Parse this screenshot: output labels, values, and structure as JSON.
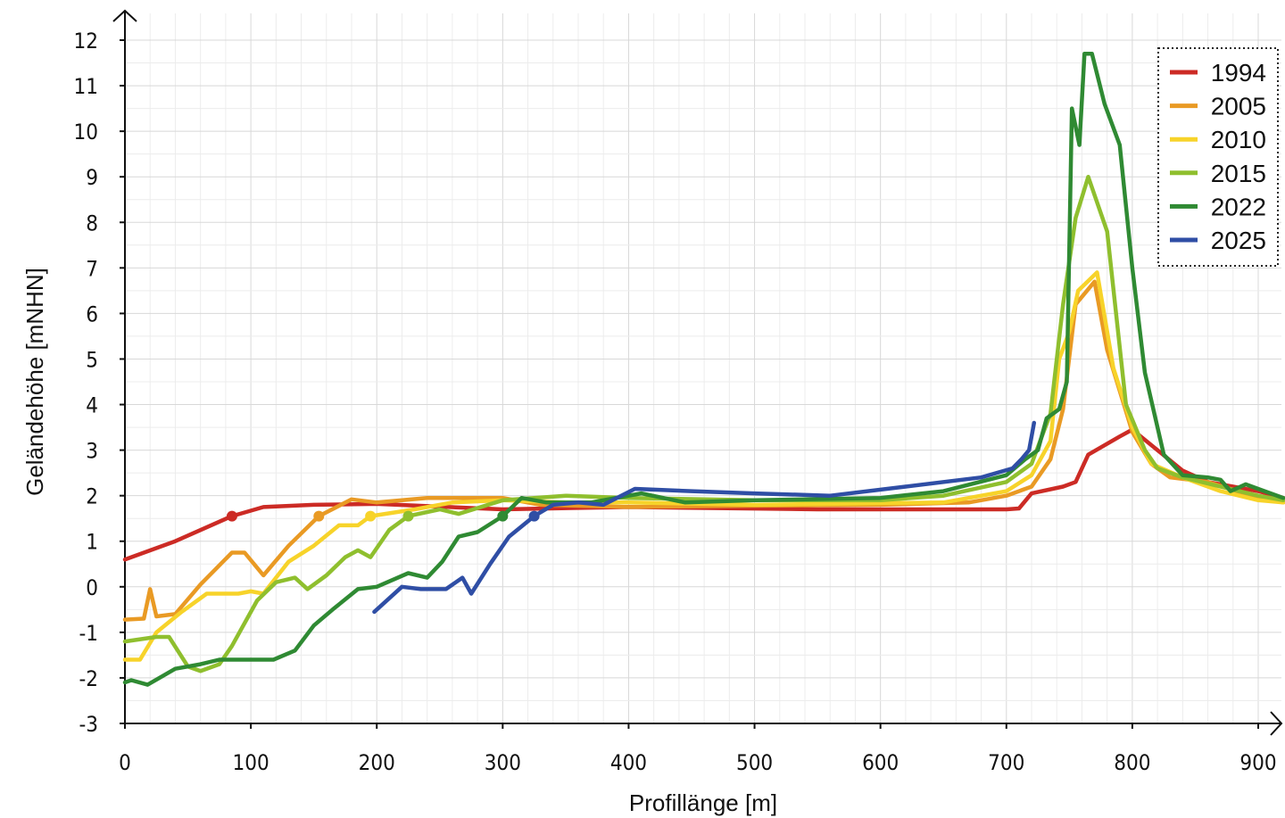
{
  "chart_data": {
    "type": "line",
    "title": "",
    "xlabel": "Profillänge [m]",
    "ylabel": "Geländehöhe [mNHN]",
    "xlim": [
      0,
      920
    ],
    "ylim": [
      -3,
      12
    ],
    "x_ticks": [
      0,
      100,
      200,
      300,
      400,
      500,
      600,
      700,
      800,
      900
    ],
    "y_ticks": [
      -3,
      -2,
      -1,
      0,
      1,
      2,
      3,
      4,
      5,
      6,
      7,
      8,
      9,
      10,
      11,
      12
    ],
    "grid": true,
    "grid_minor_step_x": 20,
    "grid_minor_step_y": 0.5,
    "legend_position": "top-right",
    "series": [
      {
        "name": "1994",
        "color": "#cc2b25",
        "marker": [
          85,
          1.55
        ],
        "points": [
          [
            0,
            0.6
          ],
          [
            40,
            1.0
          ],
          [
            85,
            1.55
          ],
          [
            110,
            1.75
          ],
          [
            150,
            1.8
          ],
          [
            200,
            1.82
          ],
          [
            300,
            1.7
          ],
          [
            400,
            1.75
          ],
          [
            550,
            1.7
          ],
          [
            700,
            1.7
          ],
          [
            710,
            1.72
          ],
          [
            720,
            2.05
          ],
          [
            745,
            2.2
          ],
          [
            755,
            2.3
          ],
          [
            765,
            2.9
          ],
          [
            790,
            3.3
          ],
          [
            800,
            3.45
          ],
          [
            820,
            3.0
          ],
          [
            840,
            2.55
          ],
          [
            860,
            2.3
          ],
          [
            900,
            2.1
          ],
          [
            920,
            1.95
          ]
        ]
      },
      {
        "name": "2005",
        "color": "#e99a24",
        "marker": [
          154,
          1.55
        ],
        "points": [
          [
            0,
            -0.72
          ],
          [
            15,
            -0.7
          ],
          [
            20,
            -0.05
          ],
          [
            25,
            -0.65
          ],
          [
            40,
            -0.6
          ],
          [
            60,
            0.05
          ],
          [
            85,
            0.75
          ],
          [
            95,
            0.75
          ],
          [
            110,
            0.25
          ],
          [
            130,
            0.9
          ],
          [
            154,
            1.55
          ],
          [
            180,
            1.92
          ],
          [
            200,
            1.85
          ],
          [
            240,
            1.95
          ],
          [
            300,
            1.95
          ],
          [
            330,
            1.8
          ],
          [
            400,
            1.75
          ],
          [
            500,
            1.78
          ],
          [
            600,
            1.8
          ],
          [
            670,
            1.85
          ],
          [
            700,
            2.0
          ],
          [
            720,
            2.2
          ],
          [
            735,
            2.8
          ],
          [
            745,
            3.9
          ],
          [
            755,
            6.2
          ],
          [
            770,
            6.7
          ],
          [
            780,
            5.2
          ],
          [
            790,
            4.3
          ],
          [
            800,
            3.4
          ],
          [
            815,
            2.7
          ],
          [
            830,
            2.4
          ],
          [
            860,
            2.3
          ],
          [
            900,
            1.95
          ],
          [
            920,
            1.85
          ]
        ]
      },
      {
        "name": "2010",
        "color": "#f7d32a",
        "marker": [
          195,
          1.55
        ],
        "points": [
          [
            0,
            -1.6
          ],
          [
            12,
            -1.6
          ],
          [
            25,
            -1.0
          ],
          [
            45,
            -0.55
          ],
          [
            65,
            -0.15
          ],
          [
            90,
            -0.15
          ],
          [
            100,
            -0.1
          ],
          [
            110,
            -0.15
          ],
          [
            130,
            0.55
          ],
          [
            150,
            0.9
          ],
          [
            170,
            1.35
          ],
          [
            185,
            1.35
          ],
          [
            195,
            1.55
          ],
          [
            230,
            1.7
          ],
          [
            260,
            1.85
          ],
          [
            300,
            1.9
          ],
          [
            350,
            1.85
          ],
          [
            400,
            1.85
          ],
          [
            500,
            1.8
          ],
          [
            650,
            1.85
          ],
          [
            700,
            2.1
          ],
          [
            720,
            2.45
          ],
          [
            735,
            3.2
          ],
          [
            742,
            5.0
          ],
          [
            750,
            5.6
          ],
          [
            757,
            6.5
          ],
          [
            772,
            6.9
          ],
          [
            785,
            4.8
          ],
          [
            800,
            3.5
          ],
          [
            815,
            2.7
          ],
          [
            840,
            2.4
          ],
          [
            870,
            2.1
          ],
          [
            900,
            1.9
          ],
          [
            920,
            1.85
          ]
        ]
      },
      {
        "name": "2015",
        "color": "#8fbf2e",
        "marker": [
          225,
          1.55
        ],
        "points": [
          [
            0,
            -1.2
          ],
          [
            25,
            -1.1
          ],
          [
            35,
            -1.1
          ],
          [
            50,
            -1.75
          ],
          [
            60,
            -1.85
          ],
          [
            75,
            -1.7
          ],
          [
            85,
            -1.3
          ],
          [
            105,
            -0.3
          ],
          [
            120,
            0.1
          ],
          [
            135,
            0.2
          ],
          [
            145,
            -0.05
          ],
          [
            160,
            0.25
          ],
          [
            175,
            0.65
          ],
          [
            185,
            0.8
          ],
          [
            195,
            0.65
          ],
          [
            210,
            1.25
          ],
          [
            225,
            1.55
          ],
          [
            250,
            1.7
          ],
          [
            265,
            1.6
          ],
          [
            300,
            1.9
          ],
          [
            350,
            2.0
          ],
          [
            400,
            1.95
          ],
          [
            500,
            1.9
          ],
          [
            600,
            1.9
          ],
          [
            650,
            2.0
          ],
          [
            700,
            2.3
          ],
          [
            720,
            2.7
          ],
          [
            735,
            3.8
          ],
          [
            745,
            6.2
          ],
          [
            755,
            8.1
          ],
          [
            765,
            9.0
          ],
          [
            780,
            7.8
          ],
          [
            795,
            4.0
          ],
          [
            810,
            3.0
          ],
          [
            820,
            2.6
          ],
          [
            840,
            2.4
          ],
          [
            870,
            2.2
          ],
          [
            900,
            2.0
          ],
          [
            920,
            1.9
          ]
        ]
      },
      {
        "name": "2022",
        "color": "#2f8a33",
        "marker": [
          300,
          1.55
        ],
        "points": [
          [
            0,
            -2.1
          ],
          [
            5,
            -2.05
          ],
          [
            18,
            -2.15
          ],
          [
            40,
            -1.8
          ],
          [
            60,
            -1.7
          ],
          [
            75,
            -1.6
          ],
          [
            100,
            -1.6
          ],
          [
            118,
            -1.6
          ],
          [
            135,
            -1.4
          ],
          [
            150,
            -0.85
          ],
          [
            165,
            -0.5
          ],
          [
            185,
            -0.05
          ],
          [
            200,
            0.0
          ],
          [
            225,
            0.3
          ],
          [
            240,
            0.2
          ],
          [
            252,
            0.55
          ],
          [
            265,
            1.1
          ],
          [
            280,
            1.2
          ],
          [
            300,
            1.55
          ],
          [
            315,
            1.95
          ],
          [
            335,
            1.85
          ],
          [
            350,
            1.85
          ],
          [
            370,
            1.85
          ],
          [
            410,
            2.05
          ],
          [
            445,
            1.85
          ],
          [
            500,
            1.9
          ],
          [
            600,
            1.95
          ],
          [
            650,
            2.1
          ],
          [
            700,
            2.45
          ],
          [
            715,
            2.8
          ],
          [
            725,
            3.0
          ],
          [
            732,
            3.7
          ],
          [
            742,
            3.9
          ],
          [
            748,
            4.5
          ],
          [
            752,
            10.5
          ],
          [
            758,
            9.7
          ],
          [
            762,
            11.7
          ],
          [
            768,
            11.7
          ],
          [
            778,
            10.6
          ],
          [
            790,
            9.7
          ],
          [
            800,
            7.0
          ],
          [
            810,
            4.7
          ],
          [
            825,
            2.9
          ],
          [
            840,
            2.45
          ],
          [
            860,
            2.4
          ],
          [
            870,
            2.35
          ],
          [
            878,
            2.1
          ],
          [
            890,
            2.25
          ],
          [
            905,
            2.1
          ],
          [
            920,
            1.95
          ]
        ]
      },
      {
        "name": "2025",
        "color": "#2f4ea5",
        "marker": [
          325,
          1.55
        ],
        "points": [
          [
            198,
            -0.55
          ],
          [
            220,
            0.0
          ],
          [
            235,
            -0.05
          ],
          [
            255,
            -0.05
          ],
          [
            268,
            0.2
          ],
          [
            275,
            -0.15
          ],
          [
            290,
            0.5
          ],
          [
            305,
            1.1
          ],
          [
            325,
            1.55
          ],
          [
            340,
            1.8
          ],
          [
            360,
            1.85
          ],
          [
            380,
            1.8
          ],
          [
            405,
            2.15
          ],
          [
            450,
            2.1
          ],
          [
            500,
            2.05
          ],
          [
            560,
            2.0
          ],
          [
            620,
            2.2
          ],
          [
            680,
            2.4
          ],
          [
            705,
            2.6
          ],
          [
            712,
            2.8
          ],
          [
            718,
            3.0
          ],
          [
            722,
            3.6
          ]
        ]
      }
    ]
  }
}
